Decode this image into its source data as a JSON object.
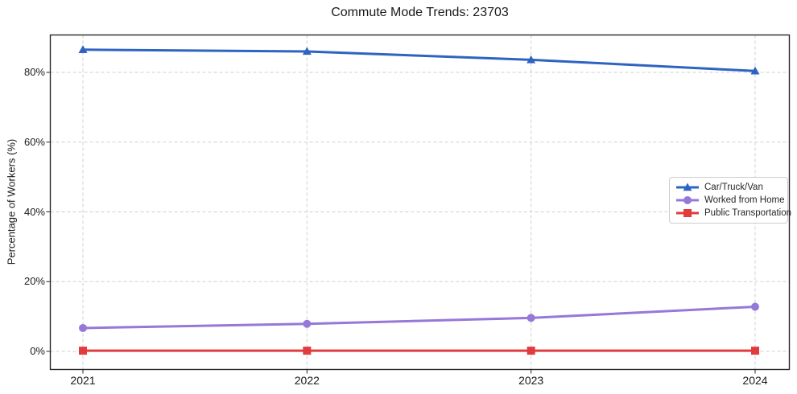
{
  "chart_data": {
    "type": "line",
    "title": "Commute Mode Trends: 23703",
    "xlabel": "",
    "ylabel": "Percentage of Workers (%)",
    "categories": [
      "2021",
      "2022",
      "2023",
      "2024"
    ],
    "series": [
      {
        "name": "Car/Truck/Van",
        "color": "#2e64c1",
        "marker": "triangle",
        "values": [
          86.5,
          86.0,
          83.6,
          80.4
        ]
      },
      {
        "name": "Worked from Home",
        "color": "#9678d8",
        "marker": "circle",
        "values": [
          6.7,
          7.9,
          9.6,
          12.8
        ]
      },
      {
        "name": "Public Transportation",
        "color": "#e23b3e",
        "marker": "square",
        "values": [
          0.2,
          0.2,
          0.2,
          0.2
        ]
      }
    ],
    "yticks": {
      "values": [
        0,
        20,
        40,
        60,
        80
      ],
      "labels": [
        "0%",
        "20%",
        "40%",
        "60%",
        "80%"
      ]
    },
    "ylim": [
      -5,
      91
    ],
    "grid": true,
    "legend": {
      "position": "right-center",
      "entries": [
        "Car/Truck/Van",
        "Worked from Home",
        "Public Transportation"
      ]
    }
  }
}
